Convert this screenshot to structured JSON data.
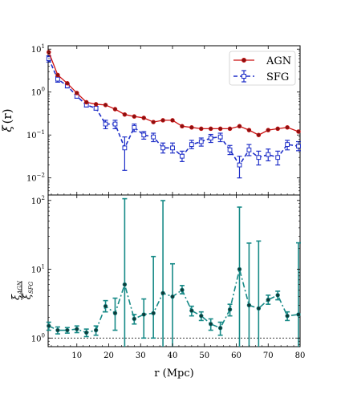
{
  "figure": {
    "xlabel": "r (Mpc)",
    "top_ylabel_main": "ξ",
    "top_ylabel_arg": "(r)",
    "bottom_ylabel_num": "ξ",
    "bottom_ylabel_num_sub": "AGN",
    "bottom_ylabel_den": "ξ",
    "bottom_ylabel_den_sub": "SFG"
  },
  "chart_data": [
    {
      "type": "line",
      "panel": "top",
      "xlim": [
        1,
        80
      ],
      "ylim": [
        0.004,
        12
      ],
      "yscale": "log",
      "xticks": [
        10,
        20,
        30,
        40,
        50,
        60,
        70,
        80
      ],
      "yticks": [
        {
          "value": 0.01,
          "base": "10",
          "exp": "−2"
        },
        {
          "value": 0.1,
          "base": "10",
          "exp": "−1"
        },
        {
          "value": 1,
          "base": "10",
          "exp": "0"
        },
        {
          "value": 10,
          "base": "10",
          "exp": "1"
        }
      ],
      "legend": "top-right",
      "series": [
        {
          "name": "AGN",
          "color": "#cc1111",
          "style": "solid",
          "marker": "filled-circle",
          "x": [
            1.2,
            4,
            7,
            10,
            13,
            16,
            19,
            22,
            25,
            28,
            31,
            34,
            37,
            40,
            43,
            46,
            49,
            52,
            55,
            58,
            61,
            64,
            67,
            70,
            73,
            76,
            79.5
          ],
          "y": [
            8.5,
            2.5,
            1.6,
            0.95,
            0.58,
            0.52,
            0.5,
            0.4,
            0.3,
            0.27,
            0.25,
            0.2,
            0.22,
            0.22,
            0.16,
            0.15,
            0.14,
            0.14,
            0.14,
            0.14,
            0.16,
            0.13,
            0.1,
            0.13,
            0.14,
            0.15,
            0.12
          ]
        },
        {
          "name": "SFG",
          "color": "#1f2fc8",
          "style": "dashed",
          "marker": "open-square",
          "x": [
            1.2,
            4,
            7,
            10,
            13,
            16,
            19,
            22,
            25,
            28,
            31,
            34,
            37,
            40,
            43,
            46,
            49,
            52,
            55,
            58,
            61,
            64,
            67,
            70,
            73,
            76,
            79.5
          ],
          "y": [
            6,
            2.0,
            1.4,
            0.8,
            0.5,
            0.42,
            0.18,
            0.18,
            0.05,
            0.15,
            0.1,
            0.09,
            0.05,
            0.05,
            0.032,
            0.06,
            0.07,
            0.085,
            0.09,
            0.045,
            0.02,
            0.045,
            0.03,
            0.035,
            0.03,
            0.06,
            0.055
          ],
          "err_low": [
            1,
            0.3,
            0.15,
            0.08,
            0.05,
            0.04,
            0.04,
            0.04,
            0.035,
            0.03,
            0.02,
            0.02,
            0.012,
            0.012,
            0.008,
            0.012,
            0.015,
            0.018,
            0.02,
            0.01,
            0.01,
            0.012,
            0.01,
            0.01,
            0.01,
            0.015,
            0.012
          ],
          "err_high": [
            1,
            0.3,
            0.15,
            0.08,
            0.05,
            0.04,
            0.04,
            0.04,
            0.04,
            0.03,
            0.02,
            0.02,
            0.015,
            0.015,
            0.01,
            0.015,
            0.015,
            0.018,
            0.02,
            0.012,
            0.012,
            0.015,
            0.012,
            0.012,
            0.012,
            0.015,
            0.015
          ]
        }
      ]
    },
    {
      "type": "line",
      "panel": "bottom",
      "xlim": [
        1,
        80
      ],
      "ylim": [
        0.75,
        120
      ],
      "yscale": "log",
      "xticks": [
        10,
        20,
        30,
        40,
        50,
        60,
        70,
        80
      ],
      "yticks": [
        {
          "value": 1,
          "base": "10",
          "exp": "0"
        },
        {
          "value": 10,
          "base": "10",
          "exp": "1"
        },
        {
          "value": 100,
          "base": "10",
          "exp": "2"
        }
      ],
      "reference_line": 1,
      "series": [
        {
          "color": "#178a87",
          "style": "dashdot",
          "marker": "filled-circle",
          "x": [
            1.2,
            4,
            7,
            10,
            13,
            16,
            19,
            22,
            25,
            28,
            31,
            34,
            37,
            40,
            43,
            46,
            49,
            52,
            55,
            58,
            61,
            64,
            67,
            70,
            73,
            76,
            79.5
          ],
          "y": [
            1.5,
            1.3,
            1.3,
            1.35,
            1.2,
            1.3,
            2.9,
            2.3,
            6.0,
            1.9,
            2.2,
            2.3,
            4.5,
            4.0,
            5.0,
            2.5,
            2.1,
            1.6,
            1.4,
            2.6,
            10.0,
            3.0,
            2.7,
            3.6,
            4.2,
            2.1,
            2.2
          ],
          "err_low": [
            0.2,
            0.15,
            0.12,
            0.15,
            0.15,
            0.2,
            0.5,
            1.0,
            5.5,
            0.3,
            1.2,
            1.3,
            3.8,
            3.3,
            0.6,
            0.4,
            0.3,
            0.3,
            0.3,
            0.5,
            9.3,
            2.3,
            2.0,
            0.5,
            0.6,
            0.3,
            1.5
          ],
          "err_high": [
            0.2,
            0.15,
            0.12,
            0.15,
            0.15,
            0.2,
            0.6,
            1.5,
            100,
            0.3,
            1.5,
            13,
            95,
            8,
            0.8,
            0.4,
            0.3,
            0.3,
            0.3,
            0.5,
            70,
            21,
            23,
            0.6,
            0.6,
            0.3,
            22
          ]
        }
      ]
    }
  ]
}
